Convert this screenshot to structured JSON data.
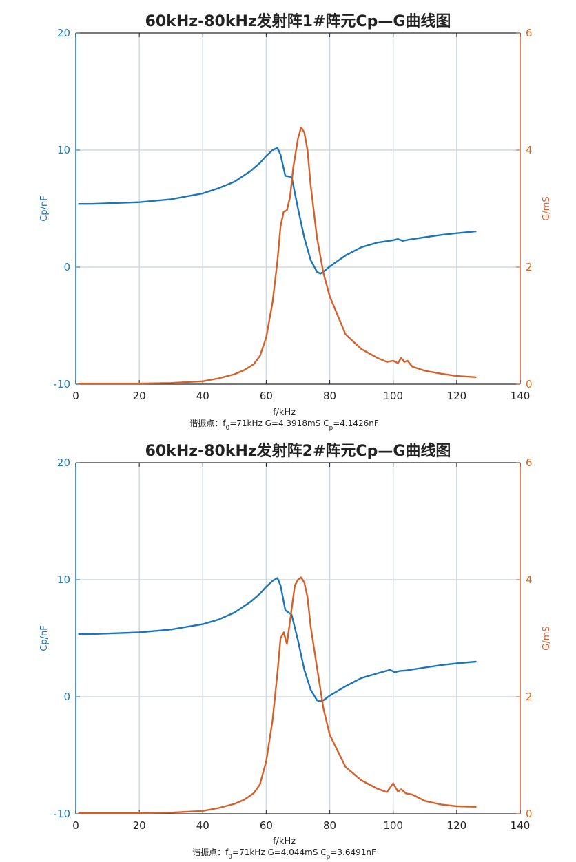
{
  "colors": {
    "cp": "#1b75b8",
    "g": "#d4602a",
    "grid": "#d0d8e0",
    "axis": "#262626"
  },
  "chart_data": [
    {
      "type": "line",
      "title": "60kHz-80kHz发射阵1#阵元Cp—G曲线图",
      "xlabel": "f/kHz",
      "ylabel_left": "Cp/nF",
      "ylabel_right": "G/mS",
      "xlim": [
        0,
        140
      ],
      "ylim_left": [
        -10,
        20
      ],
      "ylim_right": [
        0,
        6
      ],
      "xticks": [
        "0",
        "20",
        "40",
        "60",
        "80",
        "100",
        "120",
        "140"
      ],
      "yticks_left": [
        "-10",
        "0",
        "10",
        "20"
      ],
      "yticks_right": [
        "0",
        "2",
        "4",
        "6"
      ],
      "grid": true,
      "caption": {
        "prefix": "谐振点：f",
        "sub": "0",
        "rest": "=71kHz  G=4.3918mS  C",
        "sub2": "p",
        "rest2": "=4.1426nF"
      },
      "series": [
        {
          "axis": "left",
          "x": [
            1,
            5,
            10,
            20,
            30,
            40,
            45,
            50,
            55,
            58,
            60,
            62,
            63.5,
            64.5,
            66,
            68,
            70,
            72,
            74,
            76,
            77,
            78,
            80,
            85,
            90,
            95,
            100,
            101.5,
            103,
            105,
            110,
            115,
            120,
            126
          ],
          "y": [
            5.4,
            5.4,
            5.45,
            5.55,
            5.8,
            6.3,
            6.75,
            7.3,
            8.2,
            8.9,
            9.5,
            10.0,
            10.2,
            9.6,
            7.8,
            7.7,
            5.0,
            2.5,
            0.6,
            -0.4,
            -0.55,
            -0.4,
            0.05,
            1.0,
            1.7,
            2.1,
            2.3,
            2.4,
            2.25,
            2.35,
            2.55,
            2.75,
            2.9,
            3.05
          ]
        },
        {
          "axis": "right",
          "x": [
            1,
            10,
            20,
            30,
            40,
            45,
            50,
            53,
            56,
            58,
            60,
            62,
            63.5,
            64.5,
            65.5,
            66.5,
            67.5,
            68.5,
            70,
            71,
            72,
            73,
            74,
            76,
            78,
            80,
            85,
            90,
            95,
            98,
            100,
            101.5,
            102.5,
            103.5,
            104.5,
            106,
            110,
            115,
            120,
            126
          ],
          "y": [
            0.01,
            0.01,
            0.01,
            0.02,
            0.05,
            0.1,
            0.17,
            0.24,
            0.34,
            0.48,
            0.8,
            1.4,
            2.1,
            2.7,
            2.95,
            2.97,
            3.2,
            3.7,
            4.2,
            4.39,
            4.3,
            4.0,
            3.4,
            2.5,
            1.9,
            1.5,
            0.85,
            0.6,
            0.45,
            0.38,
            0.4,
            0.36,
            0.45,
            0.38,
            0.4,
            0.3,
            0.23,
            0.18,
            0.14,
            0.12
          ]
        }
      ]
    },
    {
      "type": "line",
      "title": "60kHz-80kHz发射阵2#阵元Cp—G曲线图",
      "xlabel": "f/kHz",
      "ylabel_left": "Cp/nF",
      "ylabel_right": "G/mS",
      "xlim": [
        0,
        140
      ],
      "ylim_left": [
        -10,
        20
      ],
      "ylim_right": [
        0,
        6
      ],
      "xticks": [
        "0",
        "20",
        "40",
        "60",
        "80",
        "100",
        "120",
        "140"
      ],
      "yticks_left": [
        "-10",
        "0",
        "10",
        "20"
      ],
      "yticks_right": [
        "0",
        "2",
        "4",
        "6"
      ],
      "grid": true,
      "caption": {
        "prefix": "谐振点：f",
        "sub": "0",
        "rest": "=71kHz  G=4.044mS  C",
        "sub2": "p",
        "rest2": "=3.6491nF"
      },
      "series": [
        {
          "axis": "left",
          "x": [
            1,
            5,
            10,
            20,
            30,
            40,
            45,
            50,
            55,
            58,
            60,
            62,
            63.5,
            64.5,
            66,
            68,
            70,
            72,
            74,
            76,
            77,
            78,
            80,
            85,
            90,
            95,
            99,
            100.5,
            102,
            104,
            110,
            115,
            120,
            126
          ],
          "y": [
            5.35,
            5.35,
            5.4,
            5.5,
            5.75,
            6.2,
            6.6,
            7.2,
            8.1,
            8.8,
            9.4,
            9.9,
            10.15,
            9.5,
            7.4,
            7.0,
            4.8,
            2.3,
            0.6,
            -0.3,
            -0.4,
            -0.3,
            0.1,
            0.9,
            1.6,
            2.0,
            2.3,
            2.1,
            2.2,
            2.25,
            2.5,
            2.7,
            2.85,
            3.0
          ]
        },
        {
          "axis": "right",
          "x": [
            1,
            10,
            20,
            30,
            40,
            45,
            50,
            53,
            56,
            58,
            60,
            62,
            63.5,
            64.5,
            65.5,
            66.5,
            67.5,
            69,
            70,
            71,
            72,
            73,
            74,
            76,
            78,
            80,
            85,
            90,
            95,
            98,
            100,
            101.5,
            102.5,
            104,
            106,
            110,
            115,
            120,
            126
          ],
          "y": [
            0.01,
            0.01,
            0.01,
            0.02,
            0.05,
            0.1,
            0.17,
            0.24,
            0.35,
            0.5,
            0.9,
            1.6,
            2.4,
            3.0,
            3.1,
            2.9,
            3.3,
            3.9,
            4.0,
            4.04,
            3.95,
            3.7,
            3.2,
            2.5,
            1.8,
            1.35,
            0.8,
            0.57,
            0.43,
            0.37,
            0.52,
            0.38,
            0.42,
            0.35,
            0.33,
            0.22,
            0.16,
            0.13,
            0.12
          ]
        }
      ]
    }
  ]
}
